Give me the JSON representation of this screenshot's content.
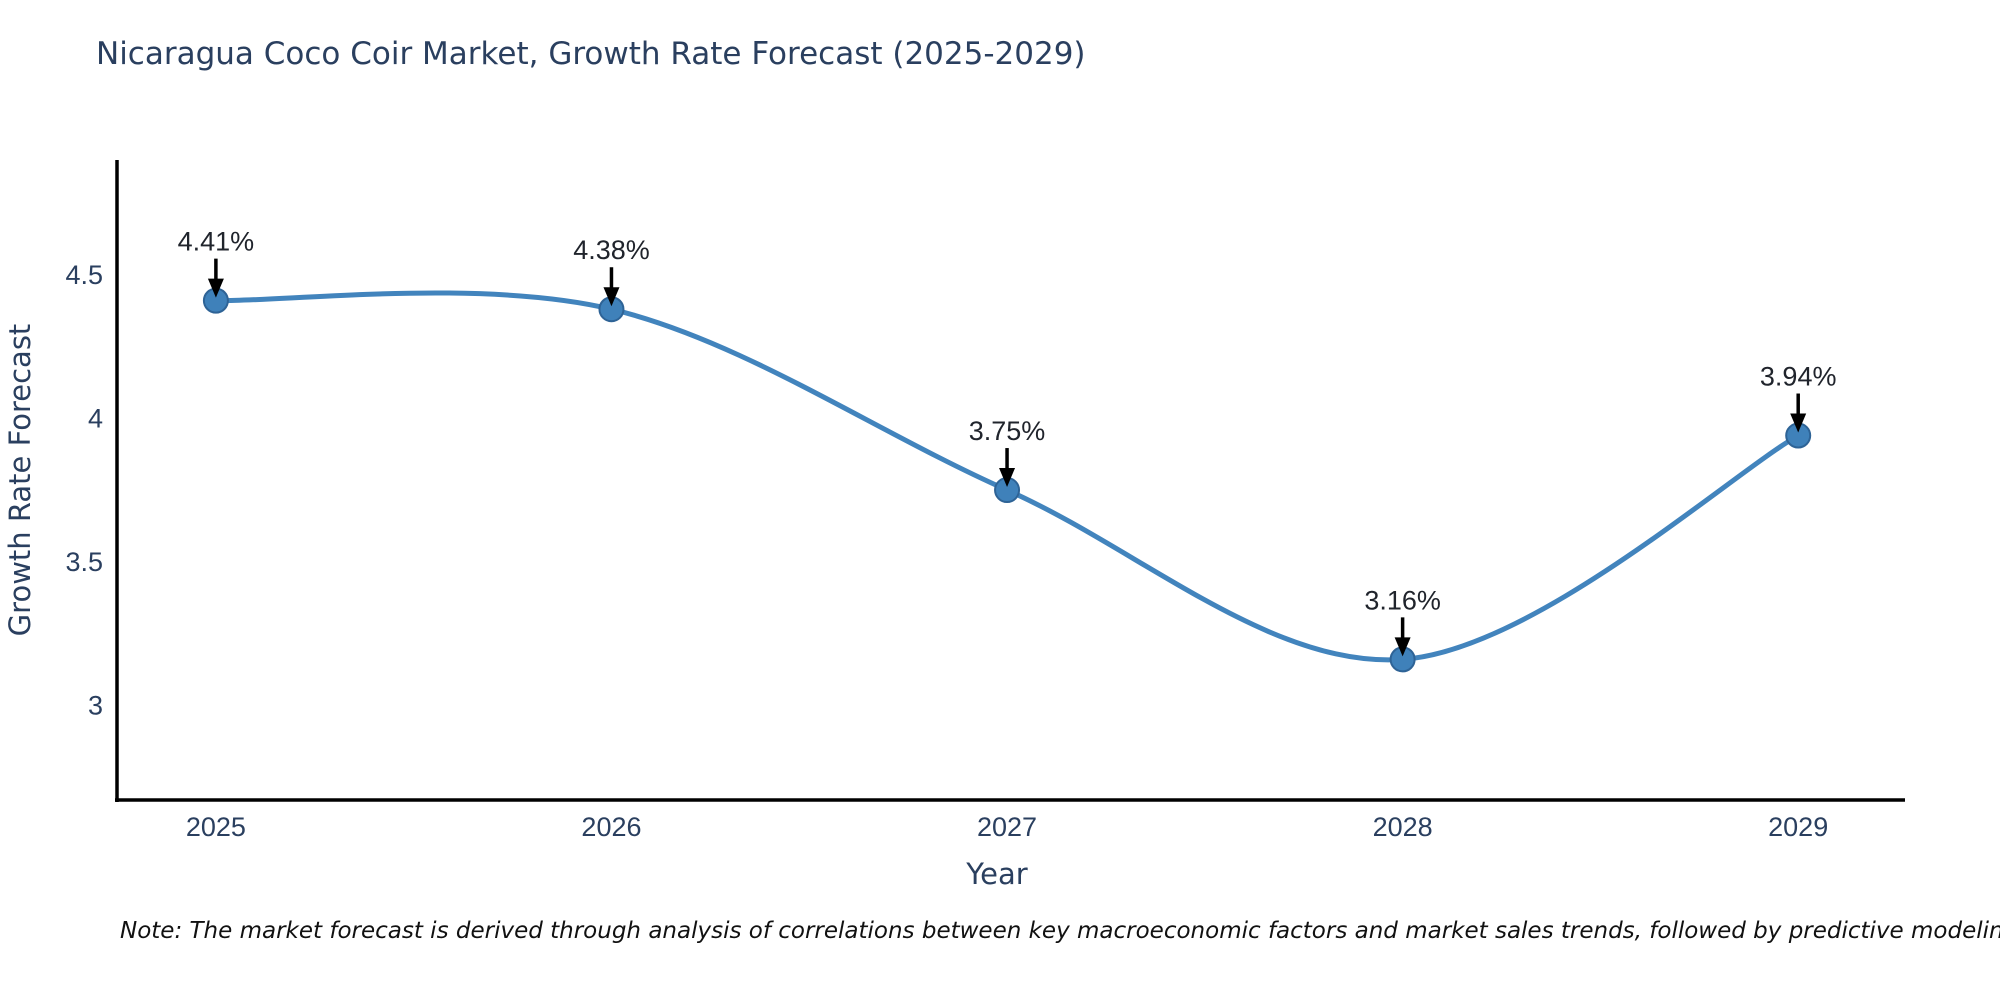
{
  "title": "Nicaragua Coco Coir Market, Growth Rate Forecast (2025-2029)",
  "note": "Note: The market forecast is derived through analysis of correlations between key macroeconomic factors and market sales trends, followed by predictive modeling to project future sales",
  "chart_data": {
    "type": "line",
    "title": "Nicaragua Coco Coir Market, Growth Rate Forecast (2025-2029)",
    "xlabel": "Year",
    "ylabel": "Growth Rate Forecast",
    "x": [
      2025,
      2026,
      2027,
      2028,
      2029
    ],
    "series": [
      {
        "name": "Growth Rate Forecast",
        "values": [
          4.41,
          4.38,
          3.75,
          3.16,
          3.94
        ]
      }
    ],
    "point_labels": [
      "4.41%",
      "4.38%",
      "3.75%",
      "3.16%",
      "3.94%"
    ],
    "x_tick_labels": [
      "2025",
      "2026",
      "2027",
      "2028",
      "2029"
    ],
    "y_tick_values": [
      3,
      3.5,
      4,
      4.5
    ],
    "y_tick_labels": [
      "3",
      "3.5",
      "4",
      "4.5"
    ],
    "xlim": [
      2024.75,
      2029.27
    ],
    "ylim": [
      2.67,
      4.9
    ],
    "grid": false,
    "legend_position": "none",
    "line_style": "smooth-spline",
    "markers": true,
    "annotation_arrows": true
  },
  "colors": {
    "line": "#4284bd",
    "marker": "#3f81ba",
    "marker_edge": "#2e6396",
    "axis_text": "#2a3f5f",
    "annotation_text": "#20242c",
    "note_text": "#111111",
    "spine": "#000000"
  }
}
